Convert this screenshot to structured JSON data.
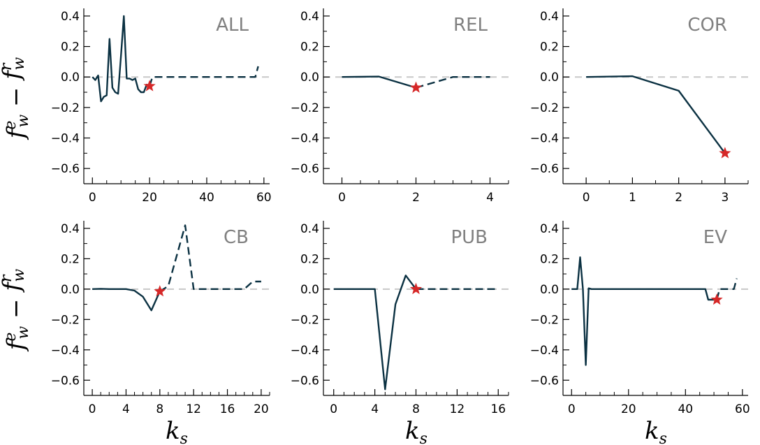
{
  "figure": {
    "ylabel": {
      "main": "f",
      "sup1": "e",
      "sub1": "w",
      "minus": " − ",
      "sup2": "r",
      "sub2": "w"
    },
    "xlabel": {
      "main": "k",
      "sub": "s"
    }
  },
  "colors": {
    "line": "#0b3142",
    "zero": "#c8c8c8",
    "star": "#d62828",
    "title": "#808080"
  },
  "chart_data": [
    {
      "type": "line",
      "title": "ALL",
      "xlim": [
        -3,
        62
      ],
      "ylim": [
        -0.7,
        0.45
      ],
      "xticks": [
        0,
        20,
        40,
        60
      ],
      "xminor": 5,
      "yticks": [
        -0.6,
        -0.4,
        -0.2,
        0.0,
        0.2,
        0.4
      ],
      "yminor": 0.1,
      "solid": {
        "x": [
          0,
          1,
          2,
          3,
          4,
          5,
          6,
          7,
          8,
          9,
          10,
          11,
          12,
          13,
          14,
          15,
          16,
          17,
          18,
          19,
          20
        ],
        "y": [
          0,
          -0.02,
          0.01,
          -0.16,
          -0.13,
          -0.12,
          0.25,
          -0.07,
          -0.1,
          -0.11,
          0.14,
          0.4,
          -0.01,
          -0.01,
          -0.02,
          -0.01,
          -0.08,
          -0.1,
          -0.1,
          -0.05,
          -0.06
        ]
      },
      "dashed": {
        "x": [
          20,
          21,
          22,
          30,
          40,
          50,
          57,
          58
        ],
        "y": [
          -0.06,
          0,
          0,
          0,
          0,
          0,
          0,
          0.07
        ]
      },
      "star": {
        "x": 20,
        "y": -0.06
      }
    },
    {
      "type": "line",
      "title": "REL",
      "xlim": [
        -0.5,
        4.5
      ],
      "ylim": [
        -0.7,
        0.45
      ],
      "xticks": [
        0,
        2,
        4
      ],
      "xminor": 0.5,
      "yticks": [
        -0.6,
        -0.4,
        -0.2,
        0.0,
        0.2,
        0.4
      ],
      "yminor": 0.1,
      "solid": {
        "x": [
          0,
          1,
          2
        ],
        "y": [
          0,
          0.003,
          -0.07
        ]
      },
      "dashed": {
        "x": [
          2,
          3,
          4
        ],
        "y": [
          -0.07,
          0,
          0
        ]
      },
      "star": {
        "x": 2,
        "y": -0.07
      }
    },
    {
      "type": "line",
      "title": "COR",
      "xlim": [
        -0.5,
        3.5
      ],
      "ylim": [
        -0.7,
        0.45
      ],
      "xticks": [
        0,
        1,
        2,
        3
      ],
      "xminor": 0.5,
      "yticks": [
        -0.6,
        -0.4,
        -0.2,
        0.0,
        0.2,
        0.4
      ],
      "yminor": 0.1,
      "solid": {
        "x": [
          0,
          1,
          2,
          3
        ],
        "y": [
          0,
          0.005,
          -0.09,
          -0.5
        ]
      },
      "dashed": {
        "x": [],
        "y": []
      },
      "star": {
        "x": 3,
        "y": -0.5
      }
    },
    {
      "type": "line",
      "title": "CB",
      "xlim": [
        -1,
        21
      ],
      "ylim": [
        -0.7,
        0.45
      ],
      "xticks": [
        0,
        4,
        8,
        12,
        16,
        20
      ],
      "xminor": 1,
      "yticks": [
        -0.6,
        -0.4,
        -0.2,
        0.0,
        0.2,
        0.4
      ],
      "yminor": 0.1,
      "solid": {
        "x": [
          0,
          1,
          2,
          3,
          4,
          5,
          6,
          7,
          8
        ],
        "y": [
          0,
          0.002,
          0,
          0,
          0,
          -0.01,
          -0.05,
          -0.14,
          -0.015
        ]
      },
      "dashed": {
        "x": [
          8,
          9,
          10,
          11,
          12,
          13,
          14,
          15,
          16,
          17,
          18,
          19,
          20
        ],
        "y": [
          -0.015,
          0.02,
          0.22,
          0.42,
          0,
          0,
          0,
          0,
          0,
          0,
          0,
          0.05,
          0.05
        ]
      },
      "star": {
        "x": 8,
        "y": -0.015
      }
    },
    {
      "type": "line",
      "title": "PUB",
      "xlim": [
        -1,
        17
      ],
      "ylim": [
        -0.7,
        0.45
      ],
      "xticks": [
        0,
        4,
        8,
        12,
        16
      ],
      "xminor": 1,
      "yticks": [
        -0.6,
        -0.4,
        -0.2,
        0.0,
        0.2,
        0.4
      ],
      "yminor": 0.1,
      "solid": {
        "x": [
          0,
          1,
          2,
          3,
          4,
          5,
          6,
          7,
          8
        ],
        "y": [
          0,
          0,
          0,
          0,
          0,
          -0.66,
          -0.1,
          0.09,
          0.0
        ]
      },
      "dashed": {
        "x": [
          8,
          9,
          10,
          11,
          12,
          13,
          14,
          15,
          16
        ],
        "y": [
          0,
          0,
          0,
          0,
          0,
          0,
          0,
          0,
          0
        ]
      },
      "star": {
        "x": 8,
        "y": 0.0
      }
    },
    {
      "type": "line",
      "title": "EV",
      "xlim": [
        -3,
        62
      ],
      "ylim": [
        -0.7,
        0.45
      ],
      "xticks": [
        0,
        20,
        40,
        60
      ],
      "xminor": 5,
      "yticks": [
        -0.6,
        -0.4,
        -0.2,
        0.0,
        0.2,
        0.4
      ],
      "yminor": 0.1,
      "solid": {
        "x": [
          0,
          1,
          2,
          3,
          4,
          5,
          6,
          7,
          10,
          20,
          30,
          40,
          47,
          48,
          49,
          50,
          51
        ],
        "y": [
          0,
          0,
          0,
          0.21,
          0,
          -0.5,
          0.005,
          0,
          0,
          0,
          0,
          0,
          0,
          -0.07,
          -0.07,
          -0.07,
          -0.07
        ]
      },
      "dashed": {
        "x": [
          51,
          52,
          53,
          57,
          58
        ],
        "y": [
          -0.07,
          0,
          0,
          0,
          0.07
        ]
      },
      "star": {
        "x": 51,
        "y": -0.07
      }
    }
  ]
}
